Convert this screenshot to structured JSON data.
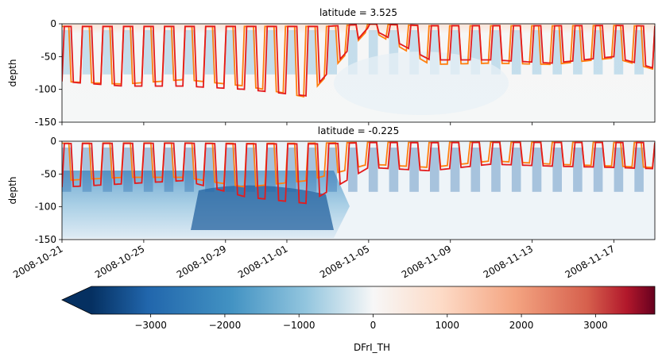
{
  "chart_data": [
    {
      "type": "heatmap",
      "title": "latitude = 3.525",
      "ylabel": "depth",
      "ylim": [
        -150,
        0
      ],
      "yticks": [
        "0",
        "-50",
        "-100",
        "-150"
      ],
      "xlim": [
        "2008-10-21",
        "2008-11-19"
      ],
      "series": [
        {
          "name": "",
          "color": "#e41a1c",
          "x": [
            "2008-10-21",
            "2008-10-24",
            "2008-10-27",
            "2008-10-30",
            "2008-11-02",
            "2008-11-05",
            "2008-11-08",
            "2008-11-11",
            "2008-11-14",
            "2008-11-17",
            "2008-11-19"
          ],
          "values": [
            -88,
            -95,
            -95,
            -100,
            -110,
            -5,
            -55,
            -55,
            -60,
            -50,
            -68
          ]
        },
        {
          "name": "",
          "color": "#ff7f0e",
          "x": [
            "2008-10-21",
            "2008-10-24",
            "2008-10-27",
            "2008-10-30",
            "2008-11-02",
            "2008-11-05",
            "2008-11-08",
            "2008-11-11",
            "2008-11-14",
            "2008-11-17",
            "2008-11-19"
          ],
          "values": [
            -88,
            -92,
            -85,
            -95,
            -112,
            -8,
            -62,
            -60,
            -62,
            -52,
            -70
          ]
        }
      ]
    },
    {
      "type": "heatmap",
      "title": "latitude = -0.225",
      "ylabel": "depth",
      "ylim": [
        -150,
        0
      ],
      "yticks": [
        "0",
        "-50",
        "-100",
        "-150"
      ],
      "xlim": [
        "2008-10-21",
        "2008-11-19"
      ],
      "xticks": [
        "2008-10-21",
        "2008-10-25",
        "2008-10-29",
        "2008-11-01",
        "2008-11-05",
        "2008-11-09",
        "2008-11-13",
        "2008-11-17"
      ],
      "series": [
        {
          "name": "",
          "color": "#e41a1c",
          "x": [
            "2008-10-21",
            "2008-10-24",
            "2008-10-27",
            "2008-10-30",
            "2008-11-02",
            "2008-11-05",
            "2008-11-08",
            "2008-11-11",
            "2008-11-14",
            "2008-11-17",
            "2008-11-19"
          ],
          "values": [
            -70,
            -65,
            -60,
            -85,
            -95,
            -40,
            -45,
            -35,
            -38,
            -40,
            -42
          ]
        },
        {
          "name": "",
          "color": "#ff7f0e",
          "x": [
            "2008-10-21",
            "2008-10-24",
            "2008-10-27",
            "2008-10-30",
            "2008-11-02",
            "2008-11-05",
            "2008-11-08",
            "2008-11-11",
            "2008-11-14",
            "2008-11-17",
            "2008-11-19"
          ],
          "values": [
            -60,
            -55,
            -55,
            -70,
            -60,
            -35,
            -40,
            -30,
            -35,
            -38,
            -40
          ]
        }
      ]
    }
  ],
  "colorbar": {
    "label": "DFrI_TH",
    "min": -3800,
    "max": 3800,
    "ticks": [
      "-3000",
      "-2000",
      "-1000",
      "0",
      "1000",
      "2000",
      "3000"
    ],
    "extend": "min",
    "colormap": "RdBu_r"
  }
}
